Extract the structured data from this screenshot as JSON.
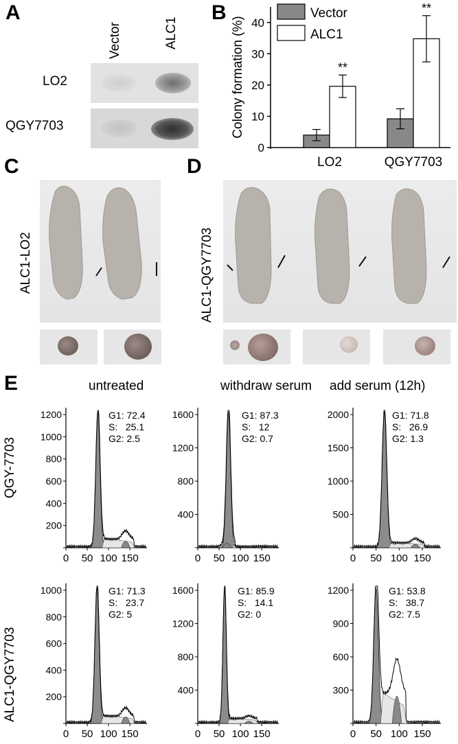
{
  "panels": {
    "A": "A",
    "B": "B",
    "C": "C",
    "D": "D",
    "E": "E"
  },
  "blot": {
    "columns": [
      "Vector",
      "ALC1"
    ],
    "rows": [
      "LO2",
      "QGY7703"
    ]
  },
  "mice": {
    "c_label": "ALC1-LO2",
    "d_label": "ALC1-QGY7703"
  },
  "flow": {
    "columns": [
      "untreated",
      "withdraw serum",
      "add serum (12h)"
    ],
    "rows": [
      "QGY-7703",
      "ALC1-QGY7703"
    ],
    "stats": [
      [
        "G1: 72.4\nS:   25.1\nG2: 2.5",
        "G1: 87.3\nS:   12\nG2: 0.7",
        "G1: 71.8\nS:   26.9\nG2: 1.3"
      ],
      [
        "G1: 71.3\nS:   23.7\nG2: 5",
        "G1: 85.9\nS:   14.1\nG2: 0",
        "G1: 53.8\nS:   38.7\nG2: 7.5"
      ]
    ],
    "x_ticks": [
      "0",
      "50",
      "100",
      "150"
    ],
    "y_ticks": [
      [
        [
          "200",
          "400",
          "600",
          "800",
          "1000",
          "1200"
        ],
        [
          "400",
          "800",
          "1200",
          "1600"
        ],
        [
          "500",
          "1000",
          "1500",
          "2000"
        ]
      ],
      [
        [
          "200",
          "400",
          "600",
          "800",
          "1000"
        ],
        [
          "400",
          "800",
          "1200",
          "1600"
        ],
        [
          "300",
          "600",
          "900",
          "1200"
        ]
      ]
    ]
  },
  "chart_data": {
    "type": "bar",
    "categories": [
      "LO2",
      "QGY7703"
    ],
    "series": [
      {
        "name": "Vector",
        "values": [
          4.0,
          9.2
        ],
        "errors": [
          1.8,
          3.2
        ],
        "color": "#888888"
      },
      {
        "name": "ALC1",
        "values": [
          19.6,
          34.8
        ],
        "errors": [
          3.6,
          7.4
        ],
        "color": "#ffffff"
      }
    ],
    "significance": [
      "**",
      "**"
    ],
    "ylabel": "Colony formation (%)",
    "ylim": [
      0,
      45
    ],
    "yticks": [
      "0",
      "10",
      "20",
      "30",
      "40"
    ],
    "legend": "top-left"
  }
}
